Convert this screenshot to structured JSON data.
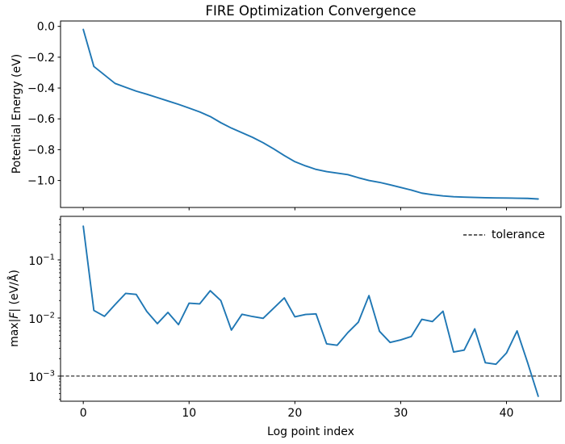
{
  "figure": {
    "background": "#ffffff"
  },
  "chart_data": [
    {
      "type": "line",
      "title": "FIRE Optimization Convergence",
      "xlabel": "",
      "ylabel": "Potential Energy (eV)",
      "line_color": "#1f77b4",
      "grid": false,
      "xlim": [
        -2.15,
        45.15
      ],
      "ylim": [
        -1.175,
        0.035
      ],
      "xticks": [
        0,
        10,
        20,
        30,
        40
      ],
      "yticks": [
        {
          "v": 0.0,
          "label": "0.0"
        },
        {
          "v": -0.2,
          "label": "−0.2"
        },
        {
          "v": -0.4,
          "label": "−0.4"
        },
        {
          "v": -0.6,
          "label": "−0.6"
        },
        {
          "v": -0.8,
          "label": "−0.8"
        },
        {
          "v": -1.0,
          "label": "−1.0"
        }
      ],
      "x": [
        0,
        1,
        2,
        3,
        4,
        5,
        6,
        7,
        8,
        9,
        10,
        11,
        12,
        13,
        14,
        15,
        16,
        17,
        18,
        19,
        20,
        21,
        22,
        23,
        24,
        25,
        26,
        27,
        28,
        29,
        30,
        31,
        32,
        33,
        34,
        35,
        36,
        37,
        38,
        39,
        40,
        41,
        42,
        43
      ],
      "y": [
        -0.02,
        -0.26,
        -0.315,
        -0.37,
        -0.395,
        -0.42,
        -0.44,
        -0.462,
        -0.484,
        -0.506,
        -0.53,
        -0.555,
        -0.585,
        -0.625,
        -0.66,
        -0.69,
        -0.72,
        -0.755,
        -0.795,
        -0.838,
        -0.878,
        -0.905,
        -0.928,
        -0.942,
        -0.952,
        -0.962,
        -0.982,
        -1.0,
        -1.012,
        -1.028,
        -1.045,
        -1.062,
        -1.082,
        -1.092,
        -1.1,
        -1.105,
        -1.108,
        -1.11,
        -1.112,
        -1.113,
        -1.114,
        -1.115,
        -1.116,
        -1.12
      ]
    },
    {
      "type": "line",
      "title": "",
      "xlabel": "Log point index",
      "ylabel": "max|F| (eV/Å)",
      "ylabel_parts": {
        "prefix": "max|",
        "italic": "F",
        "suffix": "| (eV/Å)"
      },
      "yscale": "log",
      "line_color": "#1f77b4",
      "grid": false,
      "xlim": [
        -2.15,
        45.15
      ],
      "ylim": [
        0.00037,
        0.562
      ],
      "xticks": [
        {
          "v": 0,
          "label": "0"
        },
        {
          "v": 10,
          "label": "10"
        },
        {
          "v": 20,
          "label": "20"
        },
        {
          "v": 30,
          "label": "30"
        },
        {
          "v": 40,
          "label": "40"
        }
      ],
      "yticks": [
        {
          "v": 0.1,
          "mantissa": "10",
          "exp": "−1"
        },
        {
          "v": 0.01,
          "mantissa": "10",
          "exp": "−2"
        },
        {
          "v": 0.001,
          "mantissa": "10",
          "exp": "−3"
        }
      ],
      "tolerance": {
        "value": 0.001,
        "color": "#000000",
        "linestyle": "dashed"
      },
      "legend": {
        "label": "tolerance",
        "position": "upper right",
        "frame": false
      },
      "x": [
        0,
        1,
        2,
        3,
        4,
        5,
        6,
        7,
        8,
        9,
        10,
        11,
        12,
        13,
        14,
        15,
        16,
        17,
        18,
        19,
        20,
        21,
        22,
        23,
        24,
        25,
        26,
        27,
        28,
        29,
        30,
        31,
        32,
        33,
        34,
        35,
        36,
        37,
        38,
        39,
        40,
        41,
        42,
        43
      ],
      "y": [
        0.38,
        0.0135,
        0.0107,
        0.017,
        0.0265,
        0.0255,
        0.013,
        0.008,
        0.0125,
        0.0077,
        0.018,
        0.0175,
        0.0295,
        0.02,
        0.0062,
        0.0116,
        0.0106,
        0.0099,
        0.0148,
        0.0222,
        0.0105,
        0.0115,
        0.0118,
        0.0036,
        0.0034,
        0.0056,
        0.0085,
        0.0243,
        0.0059,
        0.0038,
        0.0042,
        0.0048,
        0.0095,
        0.0087,
        0.0131,
        0.0026,
        0.0028,
        0.0065,
        0.0017,
        0.0016,
        0.0025,
        0.006,
        0.0017,
        0.00045
      ]
    }
  ]
}
